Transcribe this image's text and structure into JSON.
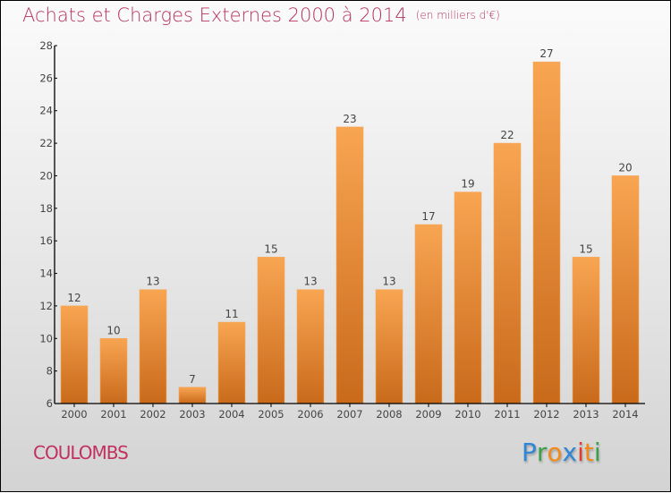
{
  "header": {
    "title": "Achats et Charges Externes 2000 à 2014",
    "unit": "(en milliers d'€)"
  },
  "footer": {
    "city": "COULOMBS",
    "logo": {
      "letters": [
        {
          "char": "P",
          "color": "#2f86d6"
        },
        {
          "char": "r",
          "color": "#3aa04a"
        },
        {
          "char": "o",
          "color": "#f08a1c"
        },
        {
          "char": "x",
          "color": "#2f86d6"
        },
        {
          "char": "i",
          "color": "#e23b2e"
        },
        {
          "char": "t",
          "color": "#f08a1c"
        },
        {
          "char": "i",
          "color": "#3aa04a"
        }
      ]
    }
  },
  "colors": {
    "title": "#b5345e",
    "bar_top": "#f8a552",
    "bar_bottom": "#c96a1b",
    "axis": "#000000",
    "label": "#444444"
  },
  "chart_data": {
    "type": "bar",
    "title": "Achats et Charges Externes 2000 à 2014",
    "subtitle": "(en milliers d'€)",
    "xlabel": "",
    "ylabel": "",
    "categories": [
      "2000",
      "2001",
      "2002",
      "2003",
      "2004",
      "2005",
      "2006",
      "2007",
      "2008",
      "2009",
      "2010",
      "2011",
      "2012",
      "2013",
      "2014"
    ],
    "values": [
      12,
      10,
      13,
      7,
      11,
      15,
      13,
      23,
      13,
      17,
      19,
      22,
      27,
      15,
      20
    ],
    "ylim": [
      6,
      28
    ],
    "yticks": [
      6,
      8,
      10,
      12,
      14,
      16,
      18,
      20,
      22,
      24,
      26,
      28
    ],
    "grid": false,
    "data_labels": true,
    "legend": "none"
  }
}
